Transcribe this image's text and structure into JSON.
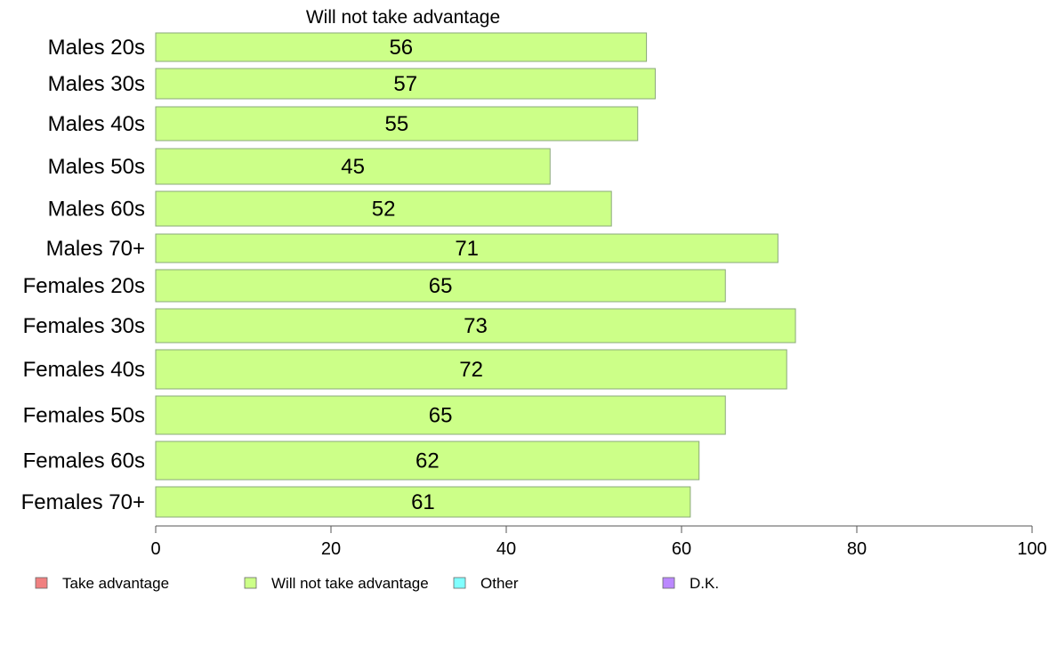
{
  "chart_data": {
    "type": "bar",
    "orientation": "horizontal",
    "title": "Will not take advantage",
    "categories": [
      "Males 20s",
      "Males 30s",
      "Males 40s",
      "Males 50s",
      "Males 60s",
      "Males 70+",
      "Females 20s",
      "Females 30s",
      "Females 40s",
      "Females 50s",
      "Females 60s",
      "Females 70+"
    ],
    "series": [
      {
        "name": "Will not take advantage",
        "values": [
          56,
          57,
          55,
          45,
          52,
          71,
          65,
          73,
          72,
          65,
          62,
          61
        ],
        "color": "#ccff88"
      }
    ],
    "xlim": [
      0,
      100
    ],
    "xticks": [
      0,
      20,
      40,
      60,
      80,
      100
    ],
    "grid": false,
    "legend": {
      "placement": "bottom",
      "entries": [
        {
          "label": "Take advantage",
          "color": "#f08080"
        },
        {
          "label": "Will not take advantage",
          "color": "#ccff88"
        },
        {
          "label": "Other",
          "color": "#80ffff"
        },
        {
          "label": "D.K.",
          "color": "#bb88ff"
        }
      ]
    }
  }
}
